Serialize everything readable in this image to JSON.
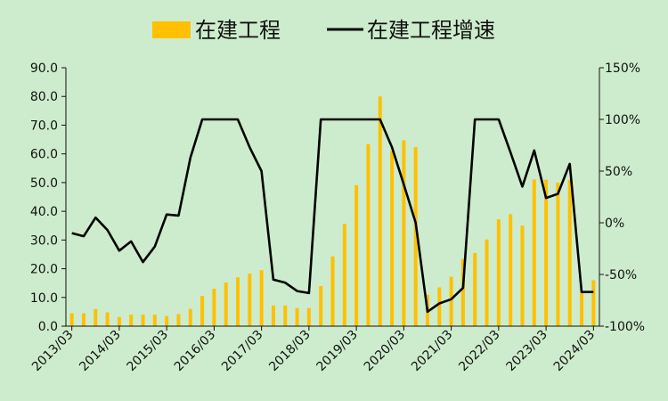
{
  "chart_data": {
    "type": "bar",
    "background": "#cdeccd",
    "colors": {
      "bar": "#ffc000",
      "line": "#000000",
      "axis": "#111111"
    },
    "legend_position": "top-center",
    "grid": false,
    "x_tick_labels": [
      "2013/03",
      "2014/03",
      "2015/03",
      "2016/03",
      "2017/03",
      "2018/03",
      "2019/03",
      "2020/03",
      "2021/03",
      "2022/03",
      "2023/03",
      "2024/03"
    ],
    "y_left": {
      "ylim": [
        0,
        90
      ],
      "ticks": [
        "0.0",
        "10.0",
        "20.0",
        "30.0",
        "40.0",
        "50.0",
        "60.0",
        "70.0",
        "80.0",
        "90.0"
      ]
    },
    "y_right": {
      "ylim": [
        -100,
        150
      ],
      "ticks": [
        "-100%",
        "-50%",
        "0%",
        "50%",
        "100%",
        "150%"
      ]
    },
    "series": [
      {
        "name": "在建工程",
        "type": "bar",
        "axis": "left",
        "values": [
          4.5,
          4.5,
          6.0,
          4.8,
          3.2,
          4.0,
          4.0,
          4.0,
          3.5,
          4.2,
          6.0,
          10.5,
          13.0,
          15.2,
          17.0,
          18.3,
          19.5,
          7.2,
          7.2,
          6.3,
          6.3,
          14.0,
          24.3,
          35.6,
          49.1,
          63.4,
          80.0,
          61.0,
          64.7,
          62.4,
          10.9,
          13.5,
          17.2,
          23.4,
          25.5,
          30.2,
          37.2,
          39.0,
          35.0,
          51.1,
          51.0,
          50.0,
          51.0,
          12.0,
          16.0
        ]
      },
      {
        "name": "在建工程增速",
        "type": "line",
        "axis": "right",
        "values": [
          -10,
          -13,
          5,
          -7,
          -27,
          -18,
          -38,
          -23,
          8,
          7,
          63,
          100,
          100,
          100,
          100,
          73,
          50,
          -55,
          -58,
          -66,
          -68,
          100,
          100,
          100,
          100,
          100,
          100,
          73,
          37,
          0,
          -86,
          -78,
          -74,
          -63,
          100,
          100,
          100,
          68,
          35,
          70,
          24,
          28,
          57,
          -67,
          -67
        ]
      }
    ]
  }
}
